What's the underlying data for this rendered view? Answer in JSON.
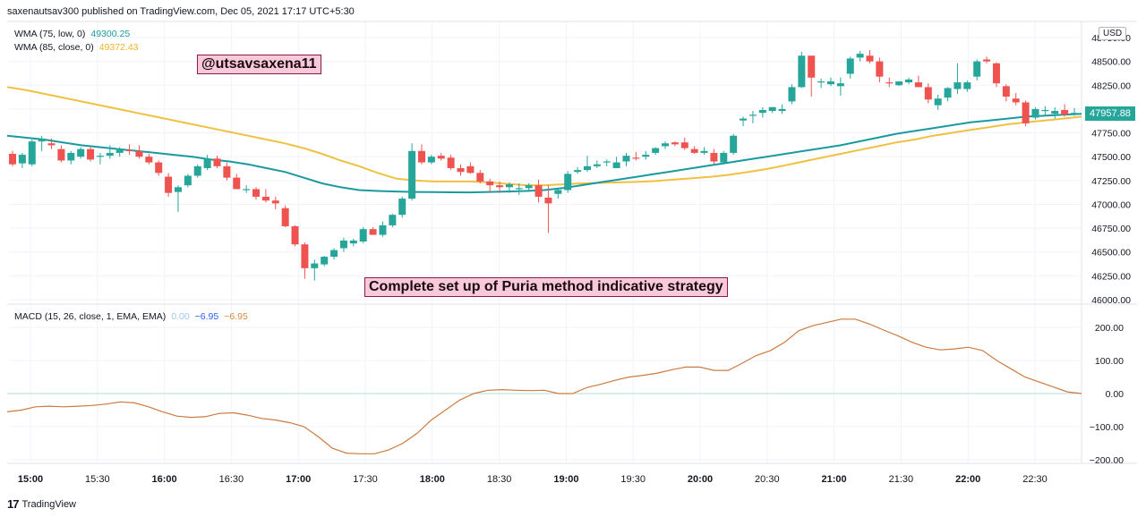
{
  "header": "saxenautsav300 published on TradingView.com, Dec 05, 2021 17:17 UTC+5:30",
  "legend": {
    "wma75_label": "WMA (75, low, 0)",
    "wma75_value": "49300.25",
    "wma85_label": "WMA (85, close, 0)",
    "wma85_value": "49372.43",
    "macd_label": "MACD (15, 26, close, 1, EMA, EMA)",
    "macd_v1": "0.00",
    "macd_v2": "−6.95",
    "macd_v3": "−6.95"
  },
  "annotations": {
    "handle": "@utsavsaxena11",
    "caption": "Complete set up of Puria method indicative strategy"
  },
  "currency": "USD",
  "last_price": "47957.88",
  "footer": "TradingView",
  "colors": {
    "up": "#26a69a",
    "down": "#ef5350",
    "wma75": "#1a9aa0",
    "wma85": "#f0c040",
    "macd": "#cd7a3f",
    "zero_line": "#b2dfdb"
  },
  "chart_data": {
    "type": "candlestick",
    "price_axis": {
      "ticks": [
        "46000.00",
        "46250.00",
        "46500.00",
        "46750.00",
        "47000.00",
        "47250.00",
        "47500.00",
        "47750.00",
        "48000.00",
        "48250.00",
        "48500.00",
        "48750.00"
      ],
      "range": [
        46000,
        48800
      ]
    },
    "macd_axis": {
      "ticks": [
        "−200.00",
        "−100.00",
        "0.00",
        "100.00",
        "200.00"
      ],
      "range": [
        -205,
        225
      ]
    },
    "time_axis": {
      "labels": [
        "15:00",
        "15:30",
        "16:00",
        "16:30",
        "17:00",
        "17:30",
        "18:00",
        "18:30",
        "19:00",
        "19:30",
        "20:00",
        "20:30",
        "21:00",
        "21:30",
        "22:00",
        "22:30"
      ],
      "bold": [
        "15:00",
        "16:00",
        "17:00",
        "18:00",
        "19:00",
        "20:00",
        "21:00",
        "22:00"
      ]
    },
    "candles": [
      [
        47530,
        47560,
        47400,
        47420
      ],
      [
        47430,
        47540,
        47380,
        47520
      ],
      [
        47420,
        47680,
        47400,
        47660
      ],
      [
        47660,
        47720,
        47560,
        47690
      ],
      [
        47640,
        47690,
        47580,
        47620
      ],
      [
        47580,
        47620,
        47440,
        47460
      ],
      [
        47460,
        47560,
        47420,
        47540
      ],
      [
        47500,
        47600,
        47480,
        47580
      ],
      [
        47580,
        47600,
        47450,
        47470
      ],
      [
        47500,
        47540,
        47420,
        47510
      ],
      [
        47510,
        47620,
        47480,
        47540
      ],
      [
        47540,
        47600,
        47500,
        47570
      ],
      [
        47570,
        47630,
        47520,
        47560
      ],
      [
        47560,
        47620,
        47480,
        47500
      ],
      [
        47500,
        47530,
        47420,
        47440
      ],
      [
        47440,
        47460,
        47300,
        47330
      ],
      [
        47290,
        47330,
        47080,
        47120
      ],
      [
        47130,
        47200,
        46920,
        47180
      ],
      [
        47200,
        47320,
        47180,
        47300
      ],
      [
        47300,
        47420,
        47280,
        47400
      ],
      [
        47380,
        47520,
        47360,
        47480
      ],
      [
        47480,
        47510,
        47380,
        47400
      ],
      [
        47400,
        47440,
        47250,
        47280
      ],
      [
        47280,
        47320,
        47160,
        47160
      ],
      [
        47160,
        47200,
        47120,
        47160
      ],
      [
        47160,
        47180,
        47050,
        47080
      ],
      [
        47080,
        47160,
        47020,
        47040
      ],
      [
        47040,
        47080,
        46950,
        47010
      ],
      [
        46960,
        46990,
        46760,
        46770
      ],
      [
        46770,
        46780,
        46560,
        46580
      ],
      [
        46580,
        46600,
        46220,
        46330
      ],
      [
        46330,
        46420,
        46200,
        46380
      ],
      [
        46370,
        46460,
        46350,
        46450
      ],
      [
        46450,
        46540,
        46420,
        46520
      ],
      [
        46540,
        46650,
        46500,
        46620
      ],
      [
        46590,
        46640,
        46560,
        46620
      ],
      [
        46610,
        46760,
        46590,
        46740
      ],
      [
        46740,
        46760,
        46680,
        46680
      ],
      [
        46680,
        46820,
        46660,
        46780
      ],
      [
        46780,
        46900,
        46760,
        46890
      ],
      [
        46890,
        47080,
        46860,
        47060
      ],
      [
        47060,
        47640,
        47040,
        47560
      ],
      [
        47560,
        47630,
        47420,
        47440
      ],
      [
        47440,
        47520,
        47420,
        47500
      ],
      [
        47510,
        47540,
        47460,
        47480
      ],
      [
        47490,
        47520,
        47360,
        47380
      ],
      [
        47380,
        47420,
        47300,
        47340
      ],
      [
        47400,
        47440,
        47320,
        47330
      ],
      [
        47330,
        47360,
        47220,
        47240
      ],
      [
        47240,
        47270,
        47120,
        47200
      ],
      [
        47200,
        47240,
        47120,
        47180
      ],
      [
        47180,
        47230,
        47120,
        47210
      ],
      [
        47160,
        47220,
        47100,
        47170
      ],
      [
        47170,
        47220,
        47130,
        47200
      ],
      [
        47200,
        47260,
        47020,
        47080
      ],
      [
        47070,
        47200,
        46700,
        47010
      ],
      [
        47110,
        47160,
        47060,
        47150
      ],
      [
        47150,
        47350,
        47120,
        47320
      ],
      [
        47340,
        47390,
        47320,
        47360
      ],
      [
        47360,
        47510,
        47340,
        47400
      ],
      [
        47400,
        47460,
        47380,
        47420
      ],
      [
        47440,
        47470,
        47400,
        47450
      ],
      [
        47380,
        47500,
        47380,
        47440
      ],
      [
        47450,
        47540,
        47400,
        47510
      ],
      [
        47490,
        47550,
        47460,
        47480
      ],
      [
        47500,
        47560,
        47470,
        47520
      ],
      [
        47540,
        47600,
        47520,
        47590
      ],
      [
        47610,
        47660,
        47580,
        47640
      ],
      [
        47650,
        47660,
        47610,
        47630
      ],
      [
        47650,
        47700,
        47570,
        47590
      ],
      [
        47580,
        47610,
        47530,
        47540
      ],
      [
        47540,
        47600,
        47520,
        47560
      ],
      [
        47540,
        47580,
        47420,
        47450
      ],
      [
        47440,
        47560,
        47420,
        47540
      ],
      [
        47540,
        47740,
        47520,
        47720
      ],
      [
        47880,
        47920,
        47820,
        47900
      ],
      [
        47930,
        47980,
        47850,
        47940
      ],
      [
        47960,
        48020,
        47910,
        47990
      ],
      [
        47980,
        48020,
        47960,
        48020
      ],
      [
        47980,
        48050,
        47950,
        48000
      ],
      [
        48080,
        48260,
        48050,
        48230
      ],
      [
        48230,
        48600,
        48220,
        48560
      ],
      [
        48560,
        48560,
        48130,
        48330
      ],
      [
        48280,
        48320,
        48220,
        48290
      ],
      [
        48260,
        48330,
        48240,
        48290
      ],
      [
        48240,
        48330,
        48140,
        48270
      ],
      [
        48370,
        48550,
        48320,
        48530
      ],
      [
        48540,
        48610,
        48500,
        48580
      ],
      [
        48560,
        48620,
        48480,
        48500
      ],
      [
        48500,
        48540,
        48280,
        48340
      ],
      [
        48280,
        48330,
        48230,
        48270
      ],
      [
        48250,
        48290,
        48240,
        48290
      ],
      [
        48280,
        48330,
        48260,
        48310
      ],
      [
        48280,
        48350,
        48240,
        48230
      ],
      [
        48230,
        48270,
        48060,
        48100
      ],
      [
        48040,
        48150,
        47990,
        48110
      ],
      [
        48120,
        48230,
        48080,
        48220
      ],
      [
        48210,
        48480,
        48160,
        48280
      ],
      [
        48210,
        48300,
        48180,
        48280
      ],
      [
        48340,
        48520,
        48300,
        48500
      ],
      [
        48520,
        48550,
        48480,
        48500
      ],
      [
        48480,
        48490,
        48230,
        48270
      ],
      [
        48240,
        48260,
        48080,
        48130
      ],
      [
        48110,
        48170,
        48040,
        48070
      ],
      [
        48070,
        48090,
        47820,
        47850
      ],
      [
        47910,
        48020,
        47890,
        48000
      ],
      [
        47980,
        48030,
        47930,
        47990
      ],
      [
        47950,
        48020,
        47900,
        47980
      ],
      [
        47990,
        48050,
        47920,
        47940
      ],
      [
        47960,
        48010,
        47930,
        47960
      ]
    ],
    "wma75": [
      47720,
      47700,
      47680,
      47650,
      47620,
      47600,
      47580,
      47560,
      47540,
      47520,
      47500,
      47470,
      47450,
      47420,
      47380,
      47340,
      47280,
      47220,
      47180,
      47150,
      47140,
      47135,
      47130,
      47128,
      47126,
      47125,
      47130,
      47135,
      47140,
      47150,
      47170,
      47200,
      47230,
      47260,
      47290,
      47320,
      47350,
      47380,
      47410,
      47440,
      47470,
      47500,
      47530,
      47560,
      47590,
      47620,
      47660,
      47700,
      47740,
      47770,
      47800,
      47830,
      47860,
      47880,
      47900,
      47920,
      47930,
      47940,
      47950
    ],
    "wma85": [
      48230,
      48200,
      48160,
      48120,
      48080,
      48040,
      48000,
      47960,
      47920,
      47880,
      47840,
      47800,
      47760,
      47720,
      47680,
      47640,
      47590,
      47530,
      47460,
      47400,
      47330,
      47270,
      47250,
      47240,
      47240,
      47240,
      47230,
      47215,
      47200,
      47200,
      47210,
      47220,
      47225,
      47230,
      47235,
      47245,
      47260,
      47275,
      47290,
      47310,
      47340,
      47370,
      47410,
      47450,
      47490,
      47530,
      47570,
      47610,
      47650,
      47680,
      47720,
      47750,
      47780,
      47810,
      47840,
      47860,
      47880,
      47900,
      47920
    ],
    "macd": [
      -55,
      -50,
      -40,
      -38,
      -40,
      -38,
      -36,
      -32,
      -25,
      -28,
      -40,
      -55,
      -68,
      -72,
      -70,
      -60,
      -58,
      -65,
      -75,
      -80,
      -88,
      -100,
      -130,
      -165,
      -180,
      -182,
      -182,
      -170,
      -150,
      -120,
      -80,
      -50,
      -20,
      0,
      10,
      12,
      10,
      9,
      10,
      0,
      0,
      18,
      28,
      40,
      50,
      55,
      62,
      72,
      80,
      80,
      70,
      70,
      92,
      115,
      130,
      155,
      190,
      205,
      215,
      225,
      225,
      210,
      192,
      175,
      155,
      140,
      132,
      135,
      140,
      130,
      100,
      75,
      50,
      35,
      20,
      5,
      0
    ]
  }
}
